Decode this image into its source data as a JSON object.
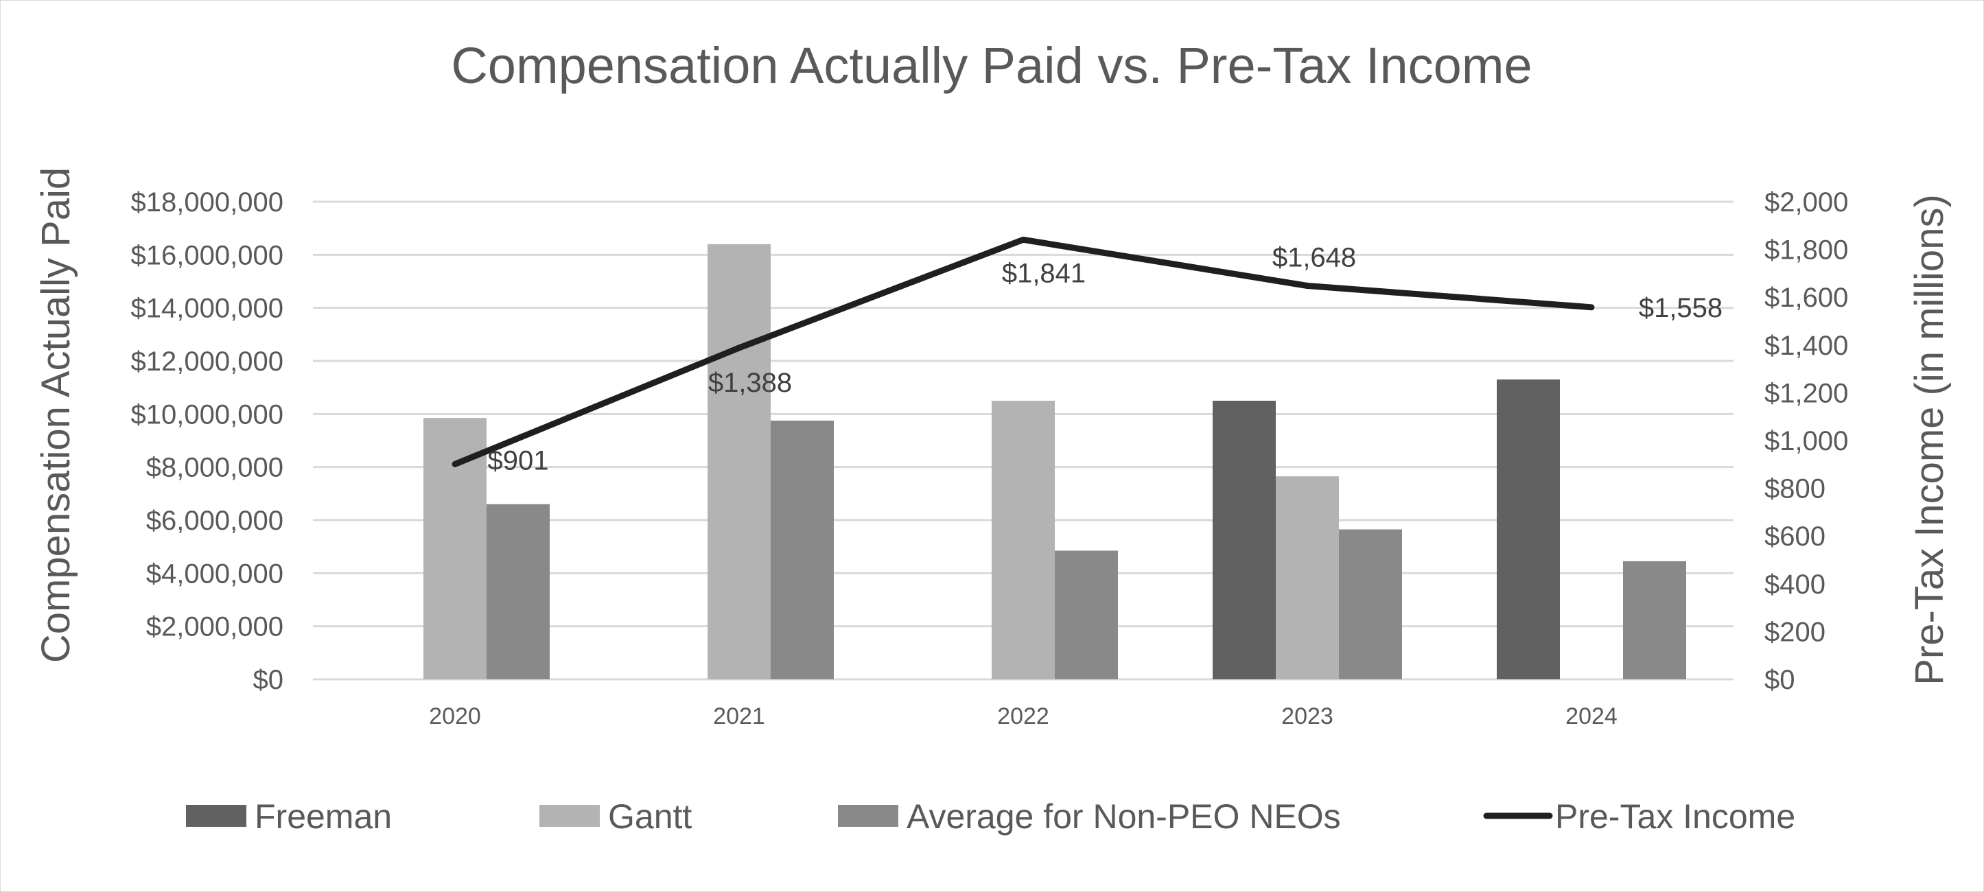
{
  "chart_data": {
    "type": "bar",
    "title": "Compensation Actually Paid vs. Pre-Tax Income",
    "categories": [
      "2020",
      "2021",
      "2022",
      "2023",
      "2024"
    ],
    "ylabel": "Compensation Actually Paid",
    "ylabel_right": "Pre-Tax Income (in millions)",
    "ylim": [
      0,
      18000000
    ],
    "ylim_right": [
      0,
      2000
    ],
    "y_ticks": [
      "$0",
      "$2,000,000",
      "$4,000,000",
      "$6,000,000",
      "$8,000,000",
      "$10,000,000",
      "$12,000,000",
      "$14,000,000",
      "$16,000,000",
      "$18,000,000"
    ],
    "y_right_ticks": [
      "$0",
      "$200",
      "$400",
      "$600",
      "$800",
      "$1,000",
      "$1,200",
      "$1,400",
      "$1,600",
      "$1,800",
      "$2,000"
    ],
    "grid": true,
    "legend_position": "bottom",
    "series": [
      {
        "name": "Freeman",
        "type": "bar",
        "color": "#616161",
        "values": [
          0,
          0,
          0,
          10500000,
          11300000
        ]
      },
      {
        "name": "Gantt",
        "type": "bar",
        "color": "#b3b3b3",
        "values": [
          9850000,
          16400000,
          10500000,
          7650000,
          0
        ]
      },
      {
        "name": "Average for Non-PEO NEOs",
        "type": "bar",
        "color": "#898989",
        "values": [
          6600000,
          9750000,
          4850000,
          5650000,
          4450000
        ]
      },
      {
        "name": "Pre-Tax Income",
        "type": "line",
        "axis": "right",
        "color": "#1f1f1f",
        "values": [
          901,
          1388,
          1841,
          1648,
          1558
        ],
        "labels": [
          "$901",
          "$1,388",
          "$1,841",
          "$1,648",
          "$1,558"
        ]
      }
    ]
  }
}
